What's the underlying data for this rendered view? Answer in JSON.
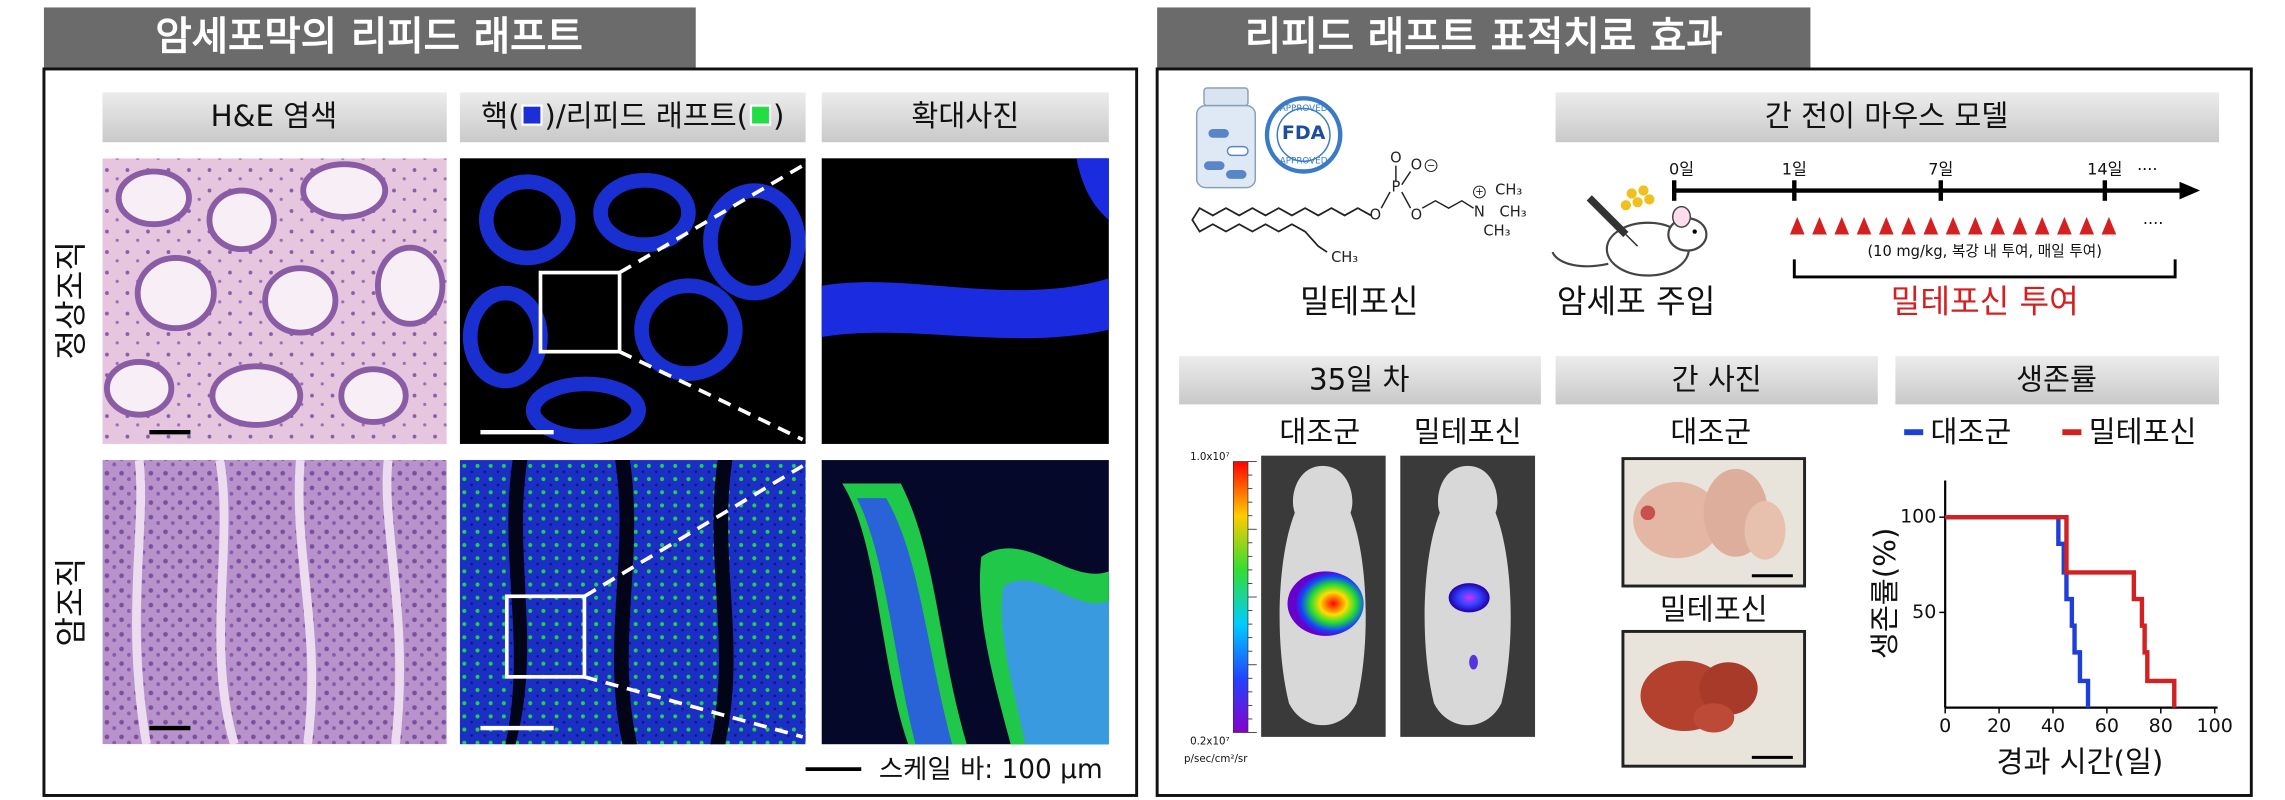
{
  "left": {
    "title": "암세포막의 리피드 래프트",
    "col_he": "H&E 염색",
    "col_fluor": [
      "핵(",
      ")/리피드 래프트(",
      ")"
    ],
    "col_zoom": "확대사진",
    "rows": [
      "정상조직",
      "암조직"
    ],
    "scale_bar": "스케일 바: 100 μm"
  },
  "right": {
    "title": "리피드 래프트 표적치료 효과",
    "drug": {
      "fda": [
        "APPROVED",
        "FDA",
        "APPROVED"
      ],
      "atoms": [
        "O",
        "P",
        "O",
        "O",
        "O",
        "N",
        "CH₃",
        "CH₃",
        "CH₃",
        "CH₃",
        "+",
        "−"
      ],
      "name": "밀테포신"
    },
    "model": {
      "title": "간 전이 마우스 모델",
      "days": [
        "0일",
        "1일",
        "7일",
        "14일"
      ],
      "more": "····",
      "dose": "(10 mg/kg, 복강 내 투여, 매일 투여)",
      "injection": "암세포 주입",
      "treatment": "밀테포신 투여"
    },
    "imaging": {
      "title": "35일 차",
      "groups": [
        "대조군",
        "밀테포신"
      ],
      "scale_max": "1.0x10⁷",
      "scale_min": "0.2x10⁷",
      "unit": "p/sec/cm²/sr"
    },
    "liver": {
      "title": "간 사진",
      "groups": [
        "대조군",
        "밀테포신"
      ]
    },
    "survival": {
      "type": "line",
      "title": "생존률",
      "x_label": "경과 시간(일)",
      "y_label": "생존률(%)",
      "xlim": [
        0,
        100
      ],
      "xticks": [
        0,
        20,
        40,
        60,
        80,
        100
      ],
      "ylim": [
        0,
        100
      ],
      "yticks": [
        50,
        100
      ],
      "series": [
        {
          "name": "대조군",
          "color": "#1f3fd9",
          "x": [
            0,
            42,
            44,
            45,
            47,
            48,
            50,
            53
          ],
          "values": [
            100,
            86,
            71,
            57,
            43,
            29,
            14,
            0
          ]
        },
        {
          "name": "밀테포신",
          "color": "#d42020",
          "x": [
            0,
            45,
            70,
            73,
            74,
            75,
            85
          ],
          "values": [
            100,
            71,
            57,
            43,
            29,
            14,
            0
          ]
        }
      ]
    }
  }
}
